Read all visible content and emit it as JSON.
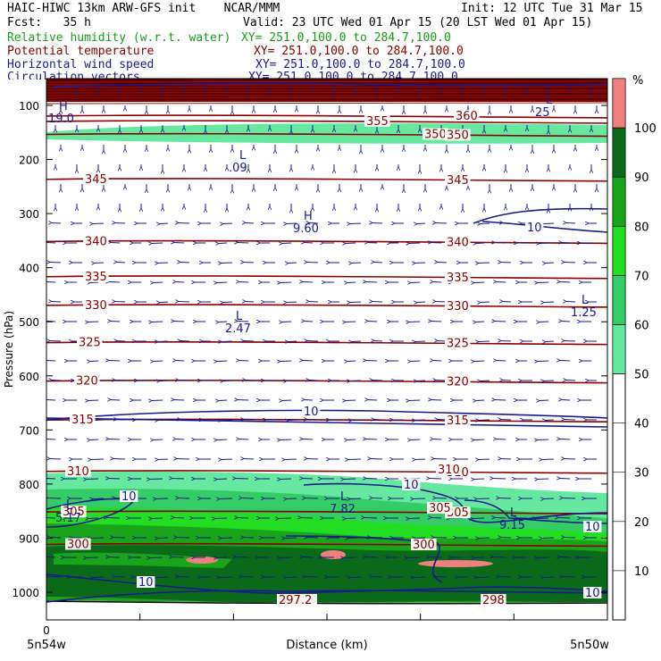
{
  "header": {
    "line1_left": "HAIC-HIWC 13km ARW-GFS init    NCAR/MMM",
    "line1_right": "Init: 12 UTC Tue 31 Mar 15",
    "line2_left": "Fcst:   35 h",
    "line2_right": "Valid: 23 UTC Wed 01 Apr 15 (20 LST Wed 01 Apr 15)",
    "fields": [
      {
        "name": "Relative humidity (w.r.t. water)",
        "xy": "XY= 251.0,100.0 to 284.7,100.0",
        "color": "#1a9a1a"
      },
      {
        "name": "Potential temperature",
        "xy": "XY= 251.0,100.0 to 284.7,100.0",
        "color": "#8b0000"
      },
      {
        "name": "Horizontal wind speed",
        "xy": "XY= 251.0,100.0 to 284.7,100.0",
        "color": "#1a1a8c"
      },
      {
        "name": "Circulation vectors",
        "xy": "XY= 251.0,100.0 to 284.7,100.0",
        "color": "#1a1a8c"
      }
    ]
  },
  "chart_data": {
    "type": "heatmap",
    "description_kind": "vertical cross-section",
    "ylabel": "Pressure (hPa)",
    "xlabel": "Distance (km)",
    "x_start_label": "5n54w",
    "x_end_label": "5n50w",
    "x_zero_tick": "0",
    "y_ticks": [
      100,
      200,
      300,
      400,
      500,
      600,
      700,
      800,
      900,
      1000
    ],
    "ylim": [
      1000,
      80
    ],
    "colorbar": {
      "unit": "%",
      "ticks": [
        10,
        20,
        30,
        40,
        50,
        60,
        70,
        80,
        90,
        100
      ],
      "bins": [
        {
          "from": 50,
          "to": 60,
          "color": "#66e8a0"
        },
        {
          "from": 60,
          "to": 70,
          "color": "#33cc66"
        },
        {
          "from": 70,
          "to": 80,
          "color": "#22dd22"
        },
        {
          "from": 80,
          "to": 90,
          "color": "#19a419"
        },
        {
          "from": 90,
          "to": 100,
          "color": "#0a6a1a"
        },
        {
          "from": 100,
          "to": 110,
          "color": "#f08080"
        }
      ]
    },
    "theta_contours": [
      {
        "value": 300,
        "p": 910
      },
      {
        "value": 305,
        "p": 850
      },
      {
        "value": 310,
        "p": 775
      },
      {
        "value": 315,
        "p": 680
      },
      {
        "value": 320,
        "p": 608
      },
      {
        "value": 325,
        "p": 537
      },
      {
        "value": 330,
        "p": 468
      },
      {
        "value": 335,
        "p": 415
      },
      {
        "value": 340,
        "p": 350
      },
      {
        "value": 345,
        "p": 235
      },
      {
        "value": 350,
        "p": 152
      },
      {
        "value": 355,
        "p": 128
      },
      {
        "value": 360,
        "p": 118
      }
    ],
    "theta_extra_labels": [
      "297.2",
      "298"
    ],
    "wind_labels": [
      "10",
      "10",
      "10",
      "10",
      "10",
      "10",
      "10"
    ],
    "extrema": [
      {
        "type": "L",
        "value": ".09"
      },
      {
        "type": "H",
        "value": "9.60"
      },
      {
        "type": "L",
        "value": "2.47"
      },
      {
        "type": "L",
        "value": "1.25"
      },
      {
        "type": "L",
        "value": "7.82"
      },
      {
        "type": "L",
        "value": "9.15"
      },
      {
        "type": "L",
        "value": "5.17"
      },
      {
        "type": "L",
        "value": "25"
      },
      {
        "type": "H",
        "value": "19.0"
      }
    ]
  }
}
